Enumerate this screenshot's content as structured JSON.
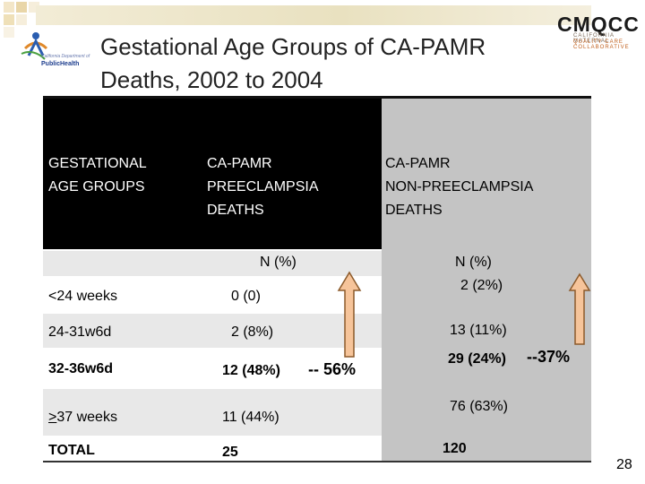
{
  "slide": {
    "title_line1": "Gestational Age Groups of CA-PAMR",
    "title_line2": "Deaths, 2002 to 2004",
    "page_number": "28"
  },
  "logos": {
    "left_brand": "PublicHealth",
    "right_brand": "CMQCC",
    "right_sub1": "CALIFORNIA MATERNAL",
    "right_sub2": "QUALITY CARE COLLABORATIVE"
  },
  "table": {
    "headers": {
      "col1": [
        "GESTATIONAL",
        "AGE GROUPS"
      ],
      "col2": [
        "CA-PAMR",
        "PREECLAMPSIA",
        "DEATHS"
      ],
      "col3": [
        "CA-PAMR",
        "NON-PREECLAMPSIA",
        "DEATHS"
      ]
    },
    "subheader_n_pct": "N    (%)",
    "subheader_n_pct_np": "N    (%)",
    "rows": [
      {
        "label": "<24 weeks",
        "pre": "0   (0)",
        "nonpre": "2   (2%)"
      },
      {
        "label": "24-31w6d",
        "pre": "2   (8%)",
        "nonpre": "13 (11%)"
      },
      {
        "label": "32-36w6d",
        "pre": "12 (48%)",
        "nonpre": "29 (24%)"
      },
      {
        "label_prefix": ">",
        "label": "37 weeks",
        "pre": "11 (44%)",
        "nonpre": "76 (63%)"
      },
      {
        "label": "TOTAL",
        "pre": "25",
        "nonpre": "120"
      }
    ],
    "annotation_pre": "-- 56%",
    "annotation_nonpre": "--37%"
  },
  "colors": {
    "header_black": "#000000",
    "header_gray": "#c4c4c4",
    "row_shade": "#e8e8e8",
    "arrow_fill": "#f6c49a",
    "arrow_stroke": "#8b5a2b"
  }
}
